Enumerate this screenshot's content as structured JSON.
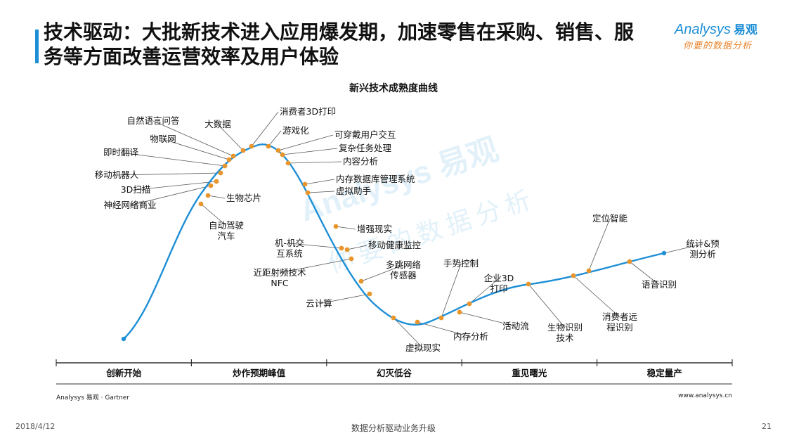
{
  "header": {
    "title": "技术驱动：大批新技术进入应用爆发期，加速零售在采购、销售、服务等方面改善运营效率及用户体验"
  },
  "logo": {
    "brand": "Analysys",
    "brand_cn": "易观",
    "slogan": "你要的数据分析"
  },
  "watermark": {
    "brand": "Analysys 易观",
    "slogan": "你要的数据分析"
  },
  "chart_data": {
    "type": "line",
    "title": "新兴技术成熟度曲线",
    "phases": [
      "创新开始",
      "炒作预期峰值",
      "幻灭低谷",
      "重见曙光",
      "稳定量产"
    ],
    "labels": [
      {
        "text": "自然语言问答"
      },
      {
        "text": "大数据"
      },
      {
        "text": "消费者3D打印"
      },
      {
        "text": "游戏化"
      },
      {
        "text": "可穿戴用户交互"
      },
      {
        "text": "复杂任务处理"
      },
      {
        "text": "内容分析"
      },
      {
        "text": "物联网"
      },
      {
        "text": "即时翻译"
      },
      {
        "text": "移动机器人"
      },
      {
        "text": "3D扫描"
      },
      {
        "text": "神经网络商业"
      },
      {
        "text": "生物芯片"
      },
      {
        "text": "自动驾驶汽车"
      },
      {
        "text": "内存数据库管理系统"
      },
      {
        "text": "虚拟助手"
      },
      {
        "text": "增强现实"
      },
      {
        "text": "机-机交互系统"
      },
      {
        "text": "移动健康监控"
      },
      {
        "text": "近距射频技术NFC"
      },
      {
        "text": "多跳网络传感器"
      },
      {
        "text": "云计算"
      },
      {
        "text": "虚拟现实"
      },
      {
        "text": "内存分析"
      },
      {
        "text": "手势控制"
      },
      {
        "text": "企业3D打印"
      },
      {
        "text": "活动流"
      },
      {
        "text": "生物识别技术"
      },
      {
        "text": "消费者远程识别"
      },
      {
        "text": "定位智能"
      },
      {
        "text": "语音识别"
      },
      {
        "text": "统计&预测分析"
      }
    ],
    "colors": {
      "curve": "#1e8fd6",
      "dot": "#e8962c",
      "leader": "#555555"
    }
  },
  "footer": {
    "source": "Analysys 易观 · Gartner",
    "url": "www.analysys.cn",
    "date": "2018/4/12",
    "center": "数据分析驱动业务升级",
    "page": "21"
  }
}
